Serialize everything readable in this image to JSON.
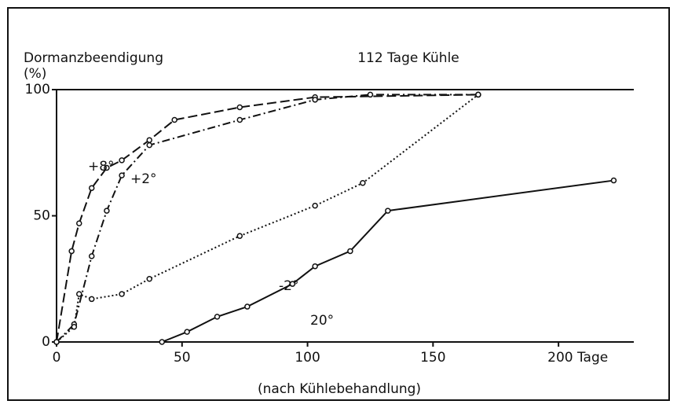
{
  "chart_data": {
    "type": "line",
    "title": "112 Tage Kühle",
    "y_label": [
      "Dormanzbeendigung",
      "(%)"
    ],
    "x_label": "(nach Kühlebehandlung)",
    "xlim": [
      0,
      230
    ],
    "xticks": [
      0,
      50,
      100,
      150,
      {
        "value": 200,
        "label": "200 Tage"
      }
    ],
    "ylim": [
      0,
      100
    ],
    "yticks": [
      0,
      50,
      100
    ],
    "color": "#111111",
    "series": [
      {
        "name": "+8°",
        "style": "dashed",
        "x": [
          0,
          6,
          9,
          14,
          20,
          26,
          37,
          47,
          73,
          103,
          168
        ],
        "values": [
          0,
          36,
          47,
          61,
          69,
          72,
          80,
          88,
          93,
          97,
          98
        ]
      },
      {
        "name": "+2°",
        "style": "dashdot",
        "x": [
          0,
          7,
          14,
          20,
          26,
          37,
          73,
          103,
          125,
          168
        ],
        "values": [
          0,
          7,
          34,
          52,
          66,
          78,
          88,
          96,
          98,
          98
        ]
      },
      {
        "name": "-2°",
        "style": "dotted",
        "x": [
          0,
          7,
          9,
          14,
          26,
          37,
          73,
          103,
          122,
          168
        ],
        "values": [
          0,
          6,
          19,
          17,
          19,
          25,
          42,
          54,
          63,
          98
        ]
      },
      {
        "name": "20°",
        "style": "solid",
        "x": [
          42,
          52,
          64,
          76,
          94,
          103,
          117,
          132,
          222
        ],
        "values": [
          0,
          4,
          10,
          14,
          23,
          30,
          36,
          52,
          64
        ]
      }
    ]
  }
}
